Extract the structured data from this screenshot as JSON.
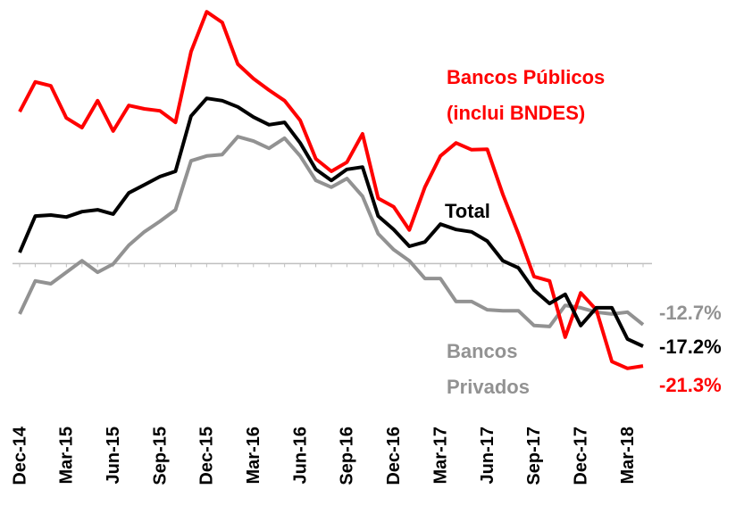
{
  "chart_data": {
    "type": "line",
    "categories": [
      "Dec-14",
      null,
      null,
      "Mar-15",
      null,
      null,
      "Jun-15",
      null,
      null,
      "Sep-15",
      null,
      null,
      "Dec-15",
      null,
      null,
      "Mar-16",
      null,
      null,
      "Jun-16",
      null,
      null,
      "Sep-16",
      null,
      null,
      "Dec-16",
      null,
      null,
      "Mar-17",
      null,
      null,
      "Jun-17",
      null,
      null,
      "Sep-17",
      null,
      null,
      "Dec-17",
      null,
      null,
      "Mar-18",
      null
    ],
    "ylim": [
      -25,
      53
    ],
    "baseline": 0,
    "series": [
      {
        "name": [
          "Bancos Públicos",
          "(inclui BNDES)"
        ],
        "color": "#ff0000",
        "values": [
          31.6,
          37.8,
          37.0,
          30.3,
          28.3,
          33.9,
          27.6,
          32.9,
          32.2,
          31.8,
          29.4,
          44.1,
          52.4,
          50.2,
          41.5,
          38.5,
          36.1,
          33.9,
          29.8,
          21.8,
          19.2,
          21.1,
          27.0,
          13.6,
          11.8,
          7.0,
          15.9,
          22.4,
          25.1,
          23.7,
          23.8,
          14.4,
          6.2,
          -2.7,
          -3.6,
          -15.3,
          -6.1,
          -9.6,
          -20.4,
          -21.8,
          -21.3
        ],
        "value_labels": [
          null,
          null,
          null,
          null,
          null,
          null,
          null,
          null,
          null,
          null,
          null,
          null,
          null,
          null,
          null,
          null,
          null,
          null,
          null,
          null,
          null,
          null,
          null,
          null,
          null,
          null,
          null,
          null,
          null,
          null,
          null,
          null,
          null,
          null,
          null,
          null,
          null,
          null,
          null,
          null,
          "-21.3%"
        ]
      },
      {
        "name": [
          "Total"
        ],
        "color": "#000000",
        "values": [
          2.3,
          9.9,
          10.1,
          9.7,
          10.8,
          11.2,
          10.3,
          14.7,
          16.4,
          18.1,
          19.2,
          30.7,
          34.4,
          33.9,
          32.6,
          30.5,
          28.9,
          29.4,
          25.1,
          19.6,
          17.3,
          19.6,
          20.1,
          9.9,
          7.1,
          3.6,
          4.5,
          8.2,
          7.1,
          6.6,
          4.7,
          0.6,
          -0.9,
          -5.5,
          -8.3,
          -6.4,
          -12.9,
          -9.2,
          -9.2,
          -15.7,
          -17.2
        ],
        "value_labels": [
          null,
          null,
          null,
          null,
          null,
          null,
          null,
          null,
          null,
          null,
          null,
          null,
          null,
          null,
          null,
          null,
          null,
          null,
          null,
          null,
          null,
          null,
          null,
          null,
          null,
          null,
          null,
          null,
          null,
          null,
          null,
          null,
          null,
          null,
          null,
          null,
          null,
          null,
          null,
          null,
          "-17.2%"
        ]
      },
      {
        "name": [
          "Bancos",
          "Privados"
        ],
        "color": "#929292",
        "values": [
          -10.5,
          -3.6,
          -4.2,
          -1.8,
          0.6,
          -1.8,
          -0.1,
          3.8,
          6.6,
          8.8,
          11.2,
          21.4,
          22.4,
          22.7,
          26.4,
          25.5,
          24.0,
          26.1,
          22.4,
          17.3,
          15.9,
          17.7,
          14.0,
          6.2,
          2.9,
          0.6,
          -3.1,
          -3.1,
          -7.9,
          -7.9,
          -9.6,
          -9.8,
          -9.8,
          -12.9,
          -13.1,
          -8.7,
          -9.2,
          -10.1,
          -10.5,
          -10.1,
          -12.7
        ],
        "value_labels": [
          null,
          null,
          null,
          null,
          null,
          null,
          null,
          null,
          null,
          null,
          null,
          null,
          null,
          null,
          null,
          null,
          null,
          null,
          null,
          null,
          null,
          null,
          null,
          null,
          null,
          null,
          null,
          null,
          null,
          null,
          null,
          null,
          null,
          null,
          null,
          null,
          null,
          null,
          null,
          null,
          "-12.7%"
        ]
      }
    ]
  }
}
